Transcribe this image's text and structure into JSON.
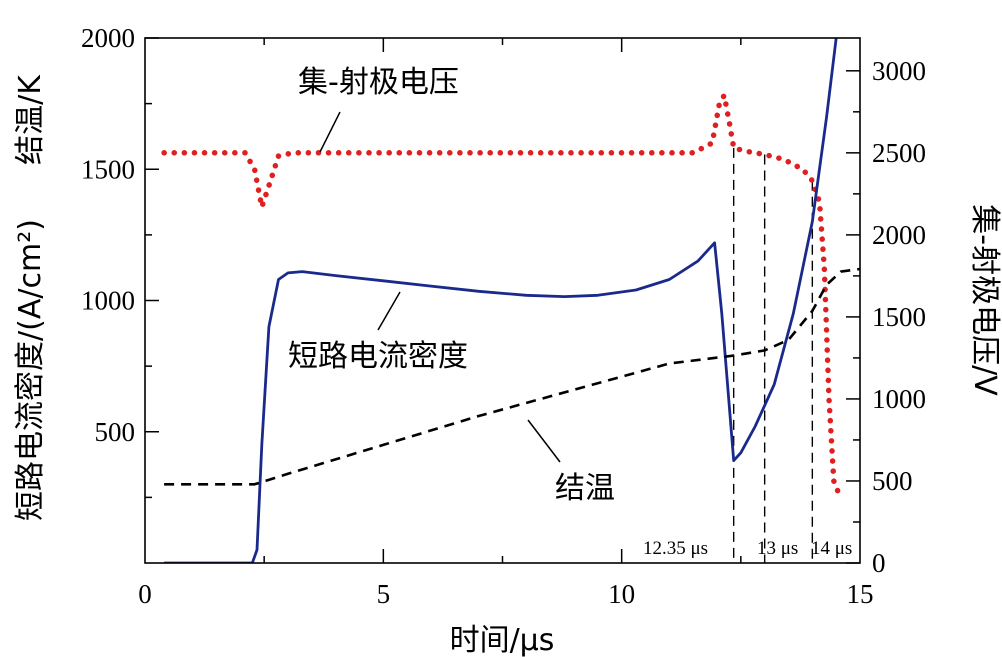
{
  "chart_data": {
    "type": "line",
    "xlabel": "时间/μs",
    "ylabel_left": "短路电流密度/(A/cm²)",
    "ylabel_left_2": "结温/K",
    "ylabel_right": "集-射极电压/V",
    "xlim": [
      0,
      15
    ],
    "ylim_left": [
      0,
      2000
    ],
    "ylim_right": [
      0,
      3200
    ],
    "x_ticks": [
      "0",
      "5",
      "10",
      "15"
    ],
    "y_left_ticks": [
      "500",
      "1000",
      "1500",
      "2000"
    ],
    "y_right_ticks": [
      "0",
      "500",
      "1000",
      "1500",
      "2000",
      "2500",
      "3000"
    ],
    "grid": false,
    "series": [
      {
        "name": "集-射极电压",
        "axis": "right",
        "color": "#e02020",
        "style": "dotted",
        "x": [
          0.4,
          2.1,
          2.3,
          2.45,
          2.6,
          2.8,
          3.1,
          4,
          6,
          8,
          10,
          11.5,
          11.9,
          12.05,
          12.15,
          12.25,
          12.35,
          12.6,
          13,
          13.4,
          13.8,
          14.0,
          14.15,
          14.25,
          14.35,
          14.45,
          14.6
        ],
        "y": [
          2500,
          2500,
          2400,
          2170,
          2300,
          2480,
          2500,
          2500,
          2500,
          2500,
          2500,
          2500,
          2560,
          2800,
          2850,
          2700,
          2530,
          2510,
          2490,
          2460,
          2400,
          2330,
          2200,
          1800,
          1000,
          500,
          390
        ]
      },
      {
        "name": "短路电流密度",
        "axis": "left",
        "color": "#1a2a8c",
        "style": "solid",
        "x": [
          0.4,
          1.5,
          2.25,
          2.35,
          2.45,
          2.6,
          2.8,
          3.0,
          3.3,
          4,
          5,
          6,
          7,
          8,
          8.8,
          9.5,
          10.3,
          11,
          11.6,
          11.95,
          12.1,
          12.35,
          12.5,
          12.8,
          13.2,
          13.6,
          14.0,
          14.3,
          14.5
        ],
        "y": [
          0,
          0,
          0,
          50,
          450,
          900,
          1080,
          1105,
          1110,
          1095,
          1075,
          1055,
          1035,
          1020,
          1015,
          1020,
          1040,
          1080,
          1150,
          1220,
          950,
          390,
          420,
          520,
          680,
          950,
          1300,
          1700,
          2000
        ]
      },
      {
        "name": "结温",
        "axis": "left",
        "color": "#000000",
        "style": "dashed",
        "x": [
          0.4,
          2.3,
          3,
          5,
          7,
          9,
          11,
          12.35,
          13,
          13.5,
          14,
          14.3,
          14.6,
          15
        ],
        "y": [
          300,
          300,
          340,
          450,
          560,
          660,
          760,
          790,
          810,
          850,
          960,
          1060,
          1110,
          1120
        ]
      }
    ],
    "annotations": [
      {
        "text": "12.35 μs",
        "x": 12.35
      },
      {
        "text": "13 μs",
        "x": 13.0
      },
      {
        "text": "14 μs",
        "x": 14.0
      }
    ],
    "series_labels": [
      "集-射极电压",
      "短路电流密度",
      "结温"
    ]
  }
}
